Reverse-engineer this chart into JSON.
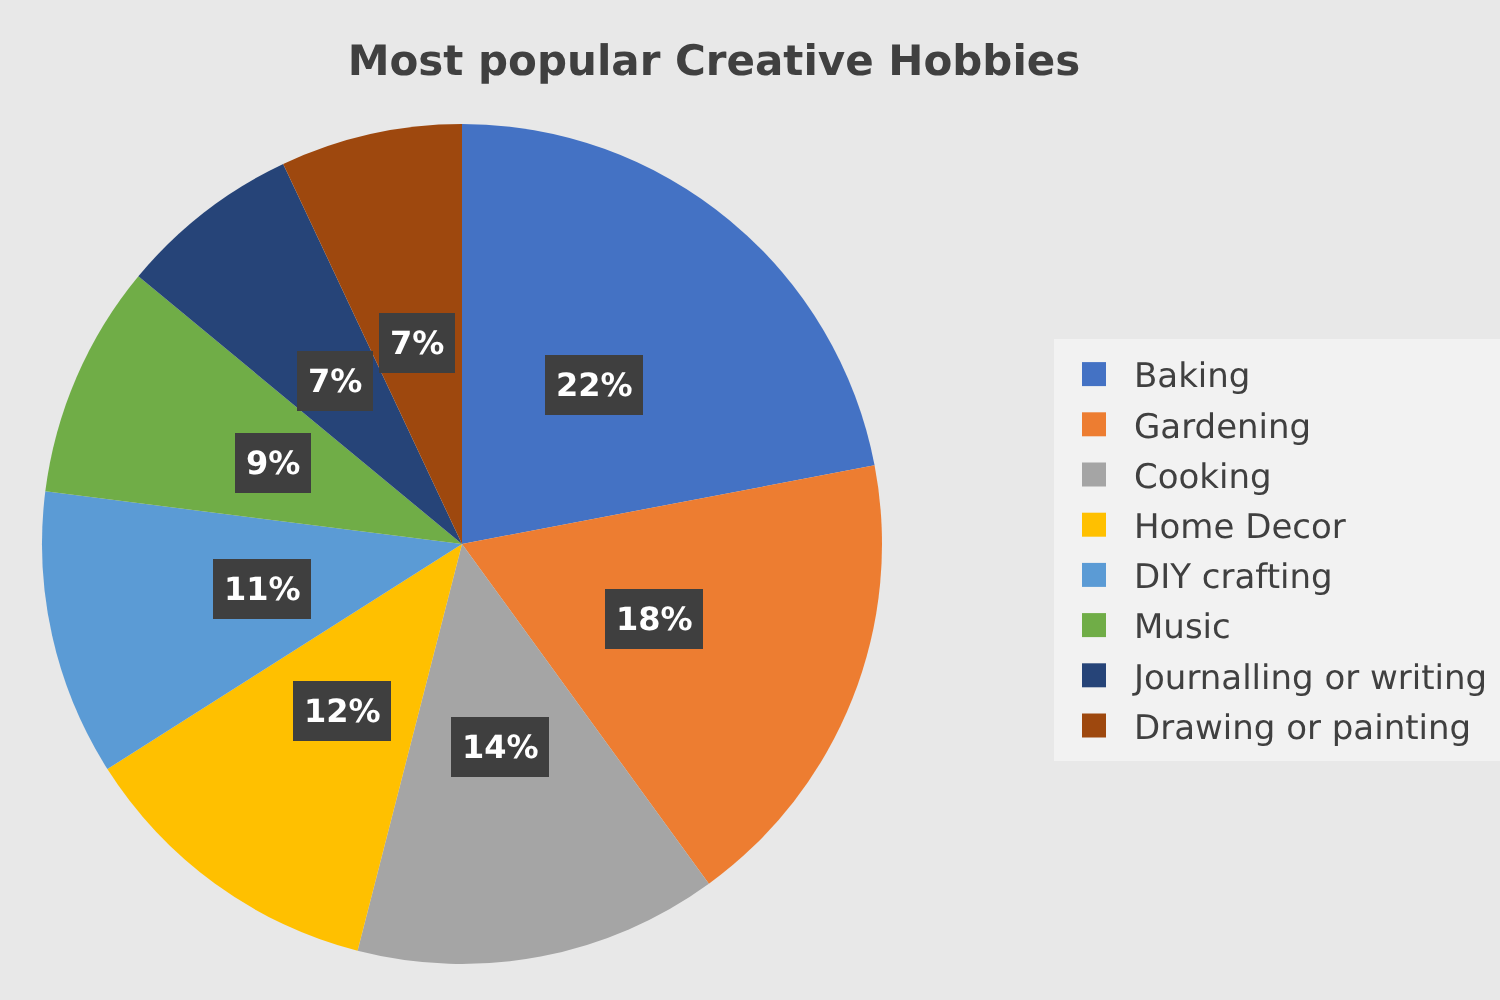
{
  "chart_data": {
    "type": "pie",
    "title": "Most popular Creative Hobbies",
    "categories": [
      "Baking",
      "Gardening",
      "Cooking",
      "Home Decor",
      "DIY crafting",
      "Music",
      "Journalling or writing",
      "Drawing or painting"
    ],
    "values": [
      22,
      18,
      14,
      12,
      11,
      9,
      7,
      7
    ],
    "colors": [
      "#4472c4",
      "#ed7d31",
      "#a5a5a5",
      "#ffc000",
      "#5b9bd5",
      "#70ad47",
      "#264478",
      "#9e480e"
    ],
    "value_labels": [
      "22%",
      "18%",
      "14%",
      "12%",
      "11%",
      "9%",
      "7%",
      "7%"
    ],
    "legend": "right"
  }
}
